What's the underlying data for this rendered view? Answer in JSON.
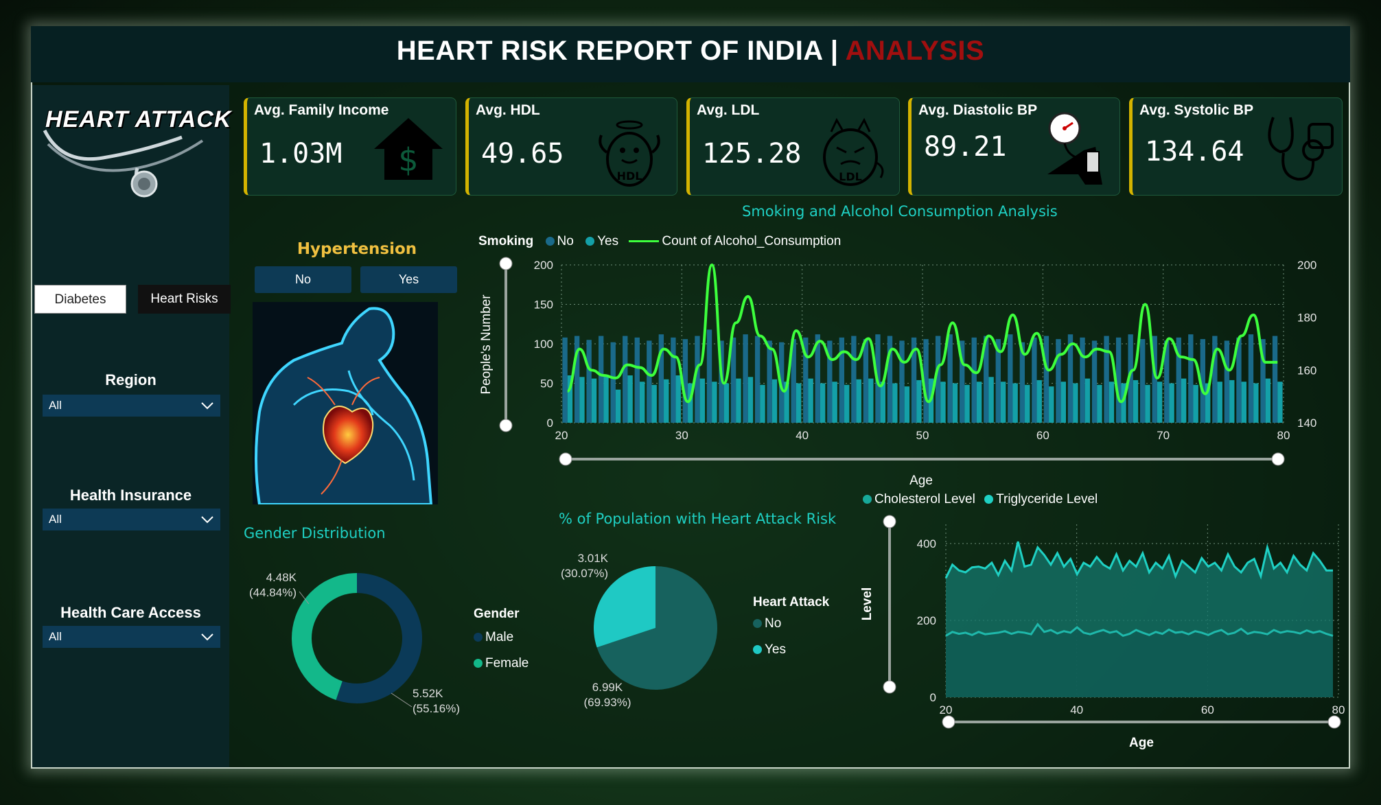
{
  "header": {
    "title_main": "HEART RISK REPORT OF INDIA | ",
    "title_accent": "ANALYSIS"
  },
  "sidebar": {
    "logo_text": "HEART ATTACK",
    "tabs": [
      {
        "label": "Diabetes",
        "active": true
      },
      {
        "label": "Heart Risks",
        "active": false
      }
    ],
    "filters": [
      {
        "label": "Region",
        "value": "All"
      },
      {
        "label": "Health Insurance",
        "value": "All"
      },
      {
        "label": "Health Care Access",
        "value": "All"
      }
    ]
  },
  "kpis": [
    {
      "label": "Avg. Family Income",
      "value": "1.03M",
      "icon": "house-dollar-icon"
    },
    {
      "label": "Avg. HDL",
      "value": "49.65",
      "icon": "hdl-character-icon"
    },
    {
      "label": "Avg. LDL",
      "value": "125.28",
      "icon": "ldl-character-icon"
    },
    {
      "label": "Avg. Diastolic BP",
      "value": "89.21",
      "icon": "bp-gauge-icon"
    },
    {
      "label": "Avg. Systolic BP",
      "value": "134.64",
      "icon": "stethoscope-icon"
    }
  ],
  "hypertension": {
    "title": "Hypertension",
    "options": [
      "No",
      "Yes"
    ]
  },
  "colors": {
    "accent_teal": "#1fd1c4",
    "bar_no": "#1a6a8a",
    "bar_yes": "#14a0a8",
    "line_green": "#3dff3d",
    "kpi_border": "#d4b300"
  },
  "chart_data": [
    {
      "type": "bar",
      "title": "Smoking and Alcohol Consumption Analysis",
      "legend_title": "Smoking",
      "legend": [
        "No",
        "Yes",
        "Count of Alcohol_Consumption"
      ],
      "xlabel": "Age",
      "ylabel": "People's Number",
      "xlim": [
        20,
        80
      ],
      "ylim": [
        0,
        200
      ],
      "y2lim": [
        140,
        200
      ],
      "x_ticks": [
        20,
        30,
        40,
        50,
        60,
        70,
        80
      ],
      "y_ticks": [
        0,
        50,
        100,
        150,
        200
      ],
      "y2_ticks": [
        140,
        160,
        180,
        200
      ],
      "x": [
        20,
        21,
        22,
        23,
        24,
        25,
        26,
        27,
        28,
        29,
        30,
        31,
        32,
        33,
        34,
        35,
        36,
        37,
        38,
        39,
        40,
        41,
        42,
        43,
        44,
        45,
        46,
        47,
        48,
        49,
        50,
        51,
        52,
        53,
        54,
        55,
        56,
        57,
        58,
        59,
        60,
        61,
        62,
        63,
        64,
        65,
        66,
        67,
        68,
        69,
        70,
        71,
        72,
        73,
        74,
        75,
        76,
        77,
        78,
        79
      ],
      "series": [
        {
          "name": "No",
          "values": [
            108,
            110,
            105,
            110,
            102,
            110,
            108,
            104,
            112,
            108,
            106,
            110,
            118,
            104,
            108,
            112,
            110,
            104,
            102,
            106,
            108,
            112,
            104,
            108,
            110,
            106,
            112,
            110,
            104,
            108,
            106,
            110,
            112,
            104,
            108,
            110,
            106,
            112,
            102,
            108,
            110,
            106,
            112,
            108,
            104,
            110,
            108,
            112,
            106,
            110,
            104,
            108,
            112,
            106,
            110,
            104,
            108,
            112,
            106,
            110
          ]
        },
        {
          "name": "Yes",
          "values": [
            60,
            58,
            56,
            60,
            42,
            60,
            52,
            48,
            55,
            60,
            50,
            56,
            52,
            50,
            56,
            58,
            48,
            55,
            52,
            50,
            56,
            50,
            52,
            48,
            55,
            56,
            52,
            50,
            46,
            54,
            56,
            52,
            50,
            48,
            52,
            58,
            52,
            50,
            48,
            54,
            46,
            52,
            50,
            56,
            48,
            52,
            50,
            54,
            48,
            52,
            50,
            56,
            48,
            50,
            52,
            54,
            52,
            50,
            56,
            52
          ]
        },
        {
          "name": "Count of Alcohol_Consumption",
          "values": [
            152,
            168,
            160,
            158,
            157,
            162,
            161,
            158,
            168,
            165,
            148,
            162,
            200,
            155,
            178,
            188,
            173,
            168,
            152,
            175,
            165,
            171,
            164,
            167,
            164,
            172,
            154,
            168,
            163,
            168,
            148,
            162,
            178,
            162,
            159,
            173,
            167,
            181,
            166,
            174,
            160,
            166,
            170,
            165,
            168,
            167,
            148,
            160,
            185,
            157,
            172,
            165,
            164,
            151,
            168,
            160,
            173,
            181,
            163,
            163
          ]
        }
      ]
    },
    {
      "type": "pie",
      "title": "Gender Distribution",
      "legend_title": "Gender",
      "labels": [
        "Male",
        "Female"
      ],
      "values": [
        5520,
        4480
      ],
      "value_labels": [
        "5.52K",
        "4.48K"
      ],
      "percent_labels": [
        "(55.16%)",
        "(44.84%)"
      ]
    },
    {
      "type": "pie",
      "title": "% of Population with Heart Attack Risk",
      "legend_title": "Heart Attack",
      "labels": [
        "No",
        "Yes"
      ],
      "values": [
        6990,
        3010
      ],
      "value_labels": [
        "6.99K",
        "3.01K"
      ],
      "percent_labels": [
        "(69.93%)",
        "(30.07%)"
      ]
    },
    {
      "type": "area",
      "legend": [
        "Cholesterol Level",
        "Triglyceride Level"
      ],
      "xlabel": "Age",
      "ylabel": "Level",
      "xlim": [
        20,
        80
      ],
      "ylim": [
        0,
        450
      ],
      "x_ticks": [
        20,
        40,
        60,
        80
      ],
      "y_ticks": [
        0,
        200,
        400
      ],
      "x": [
        20,
        21,
        22,
        23,
        24,
        25,
        26,
        27,
        28,
        29,
        30,
        31,
        32,
        33,
        34,
        35,
        36,
        37,
        38,
        39,
        40,
        41,
        42,
        43,
        44,
        45,
        46,
        47,
        48,
        49,
        50,
        51,
        52,
        53,
        54,
        55,
        56,
        57,
        58,
        59,
        60,
        61,
        62,
        63,
        64,
        65,
        66,
        67,
        68,
        69,
        70,
        71,
        72,
        73,
        74,
        75,
        76,
        77,
        78,
        79
      ],
      "series": [
        {
          "name": "Cholesterol Level",
          "values": [
            310,
            345,
            330,
            325,
            338,
            340,
            335,
            350,
            318,
            355,
            330,
            405,
            340,
            345,
            390,
            370,
            345,
            375,
            340,
            360,
            320,
            350,
            340,
            365,
            345,
            335,
            372,
            330,
            355,
            340,
            375,
            325,
            350,
            335,
            368,
            315,
            355,
            340,
            325,
            362,
            340,
            350,
            330,
            372,
            340,
            325,
            350,
            360,
            315,
            390,
            335,
            350,
            325,
            368,
            345,
            330,
            375,
            355,
            330,
            330
          ]
        },
        {
          "name": "Triglyceride Level",
          "values": [
            160,
            170,
            165,
            168,
            162,
            170,
            164,
            166,
            168,
            172,
            165,
            170,
            168,
            164,
            190,
            170,
            175,
            166,
            172,
            168,
            182,
            168,
            164,
            170,
            175,
            168,
            172,
            160,
            165,
            175,
            168,
            162,
            170,
            165,
            176,
            168,
            170,
            164,
            172,
            168,
            162,
            170,
            175,
            164,
            168,
            178,
            165,
            170,
            168,
            164,
            175,
            168,
            172,
            170,
            166,
            174,
            168,
            172,
            165,
            160
          ]
        }
      ]
    }
  ]
}
